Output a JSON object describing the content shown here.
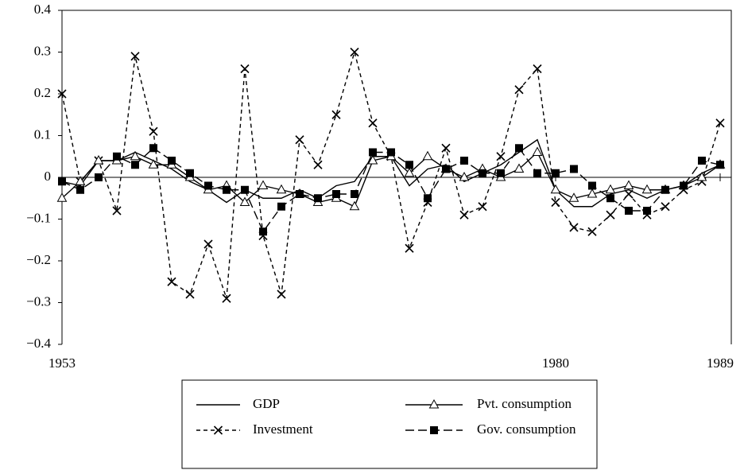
{
  "chart_data": {
    "type": "line",
    "x": [
      1953,
      1954,
      1955,
      1956,
      1957,
      1958,
      1959,
      1960,
      1961,
      1962,
      1963,
      1964,
      1965,
      1966,
      1967,
      1968,
      1969,
      1970,
      1971,
      1972,
      1973,
      1974,
      1975,
      1976,
      1977,
      1978,
      1979,
      1980,
      1981,
      1982,
      1983,
      1984,
      1985,
      1986,
      1987,
      1988,
      1989
    ],
    "xlim": [
      1953,
      1989
    ],
    "xticks": [
      1953,
      1980,
      1989
    ],
    "ylim": [
      -0.4,
      0.4
    ],
    "yticks": [
      {
        "value": -0.4,
        "label": "−0.4"
      },
      {
        "value": -0.3,
        "label": "−0.3"
      },
      {
        "value": -0.2,
        "label": "−0.2"
      },
      {
        "value": -0.1,
        "label": "−0.1"
      },
      0,
      0.1,
      0.2,
      0.3,
      0.4
    ],
    "legend": "bottom",
    "series": [
      {
        "name": "GDP",
        "color": "#000000",
        "dash": "solid",
        "marker": "none",
        "values": [
          -0.01,
          -0.02,
          0.04,
          0.04,
          0.06,
          0.04,
          0.02,
          -0.01,
          -0.03,
          -0.06,
          -0.03,
          -0.05,
          -0.05,
          -0.03,
          -0.05,
          -0.02,
          -0.01,
          0.05,
          0.05,
          -0.02,
          0.02,
          0.03,
          -0.01,
          0.01,
          0.03,
          0.06,
          0.09,
          -0.03,
          -0.07,
          -0.07,
          -0.04,
          -0.03,
          -0.05,
          -0.03,
          -0.02,
          0.01,
          0.03
        ]
      },
      {
        "name": "Investment",
        "color": "#000000",
        "dash": "dashed",
        "marker": "x",
        "values": [
          0.2,
          -0.01,
          0.04,
          -0.08,
          0.29,
          0.11,
          -0.25,
          -0.28,
          -0.16,
          -0.29,
          0.26,
          -0.14,
          -0.28,
          0.09,
          0.03,
          0.15,
          0.3,
          0.13,
          0.05,
          -0.17,
          -0.06,
          0.07,
          -0.09,
          -0.07,
          0.05,
          0.21,
          0.26,
          -0.06,
          -0.12,
          -0.13,
          -0.09,
          -0.04,
          -0.09,
          -0.07,
          -0.03,
          -0.01,
          0.13
        ]
      },
      {
        "name": "Pvt. consumption",
        "color": "#000000",
        "dash": "solid",
        "marker": "triangle",
        "values": [
          -0.05,
          -0.01,
          0.04,
          0.04,
          0.05,
          0.03,
          0.03,
          0.0,
          -0.03,
          -0.02,
          -0.06,
          -0.02,
          -0.03,
          -0.04,
          -0.06,
          -0.05,
          -0.07,
          0.04,
          0.05,
          0.01,
          0.05,
          0.02,
          0.0,
          0.02,
          0.0,
          0.02,
          0.06,
          -0.03,
          -0.05,
          -0.04,
          -0.03,
          -0.02,
          -0.03,
          -0.03,
          -0.02,
          0.0,
          0.03
        ]
      },
      {
        "name": "Gov. consumption",
        "color": "#000000",
        "dash": "longdash",
        "marker": "square",
        "values": [
          -0.01,
          -0.03,
          0.0,
          0.05,
          0.03,
          0.07,
          0.04,
          0.01,
          -0.02,
          -0.03,
          -0.03,
          -0.13,
          -0.07,
          -0.04,
          -0.05,
          -0.04,
          -0.04,
          0.06,
          0.06,
          0.03,
          -0.05,
          0.02,
          0.04,
          0.01,
          0.01,
          0.07,
          0.01,
          0.01,
          0.02,
          -0.02,
          -0.05,
          -0.08,
          -0.08,
          -0.03,
          -0.02,
          0.04,
          0.03
        ]
      }
    ]
  }
}
